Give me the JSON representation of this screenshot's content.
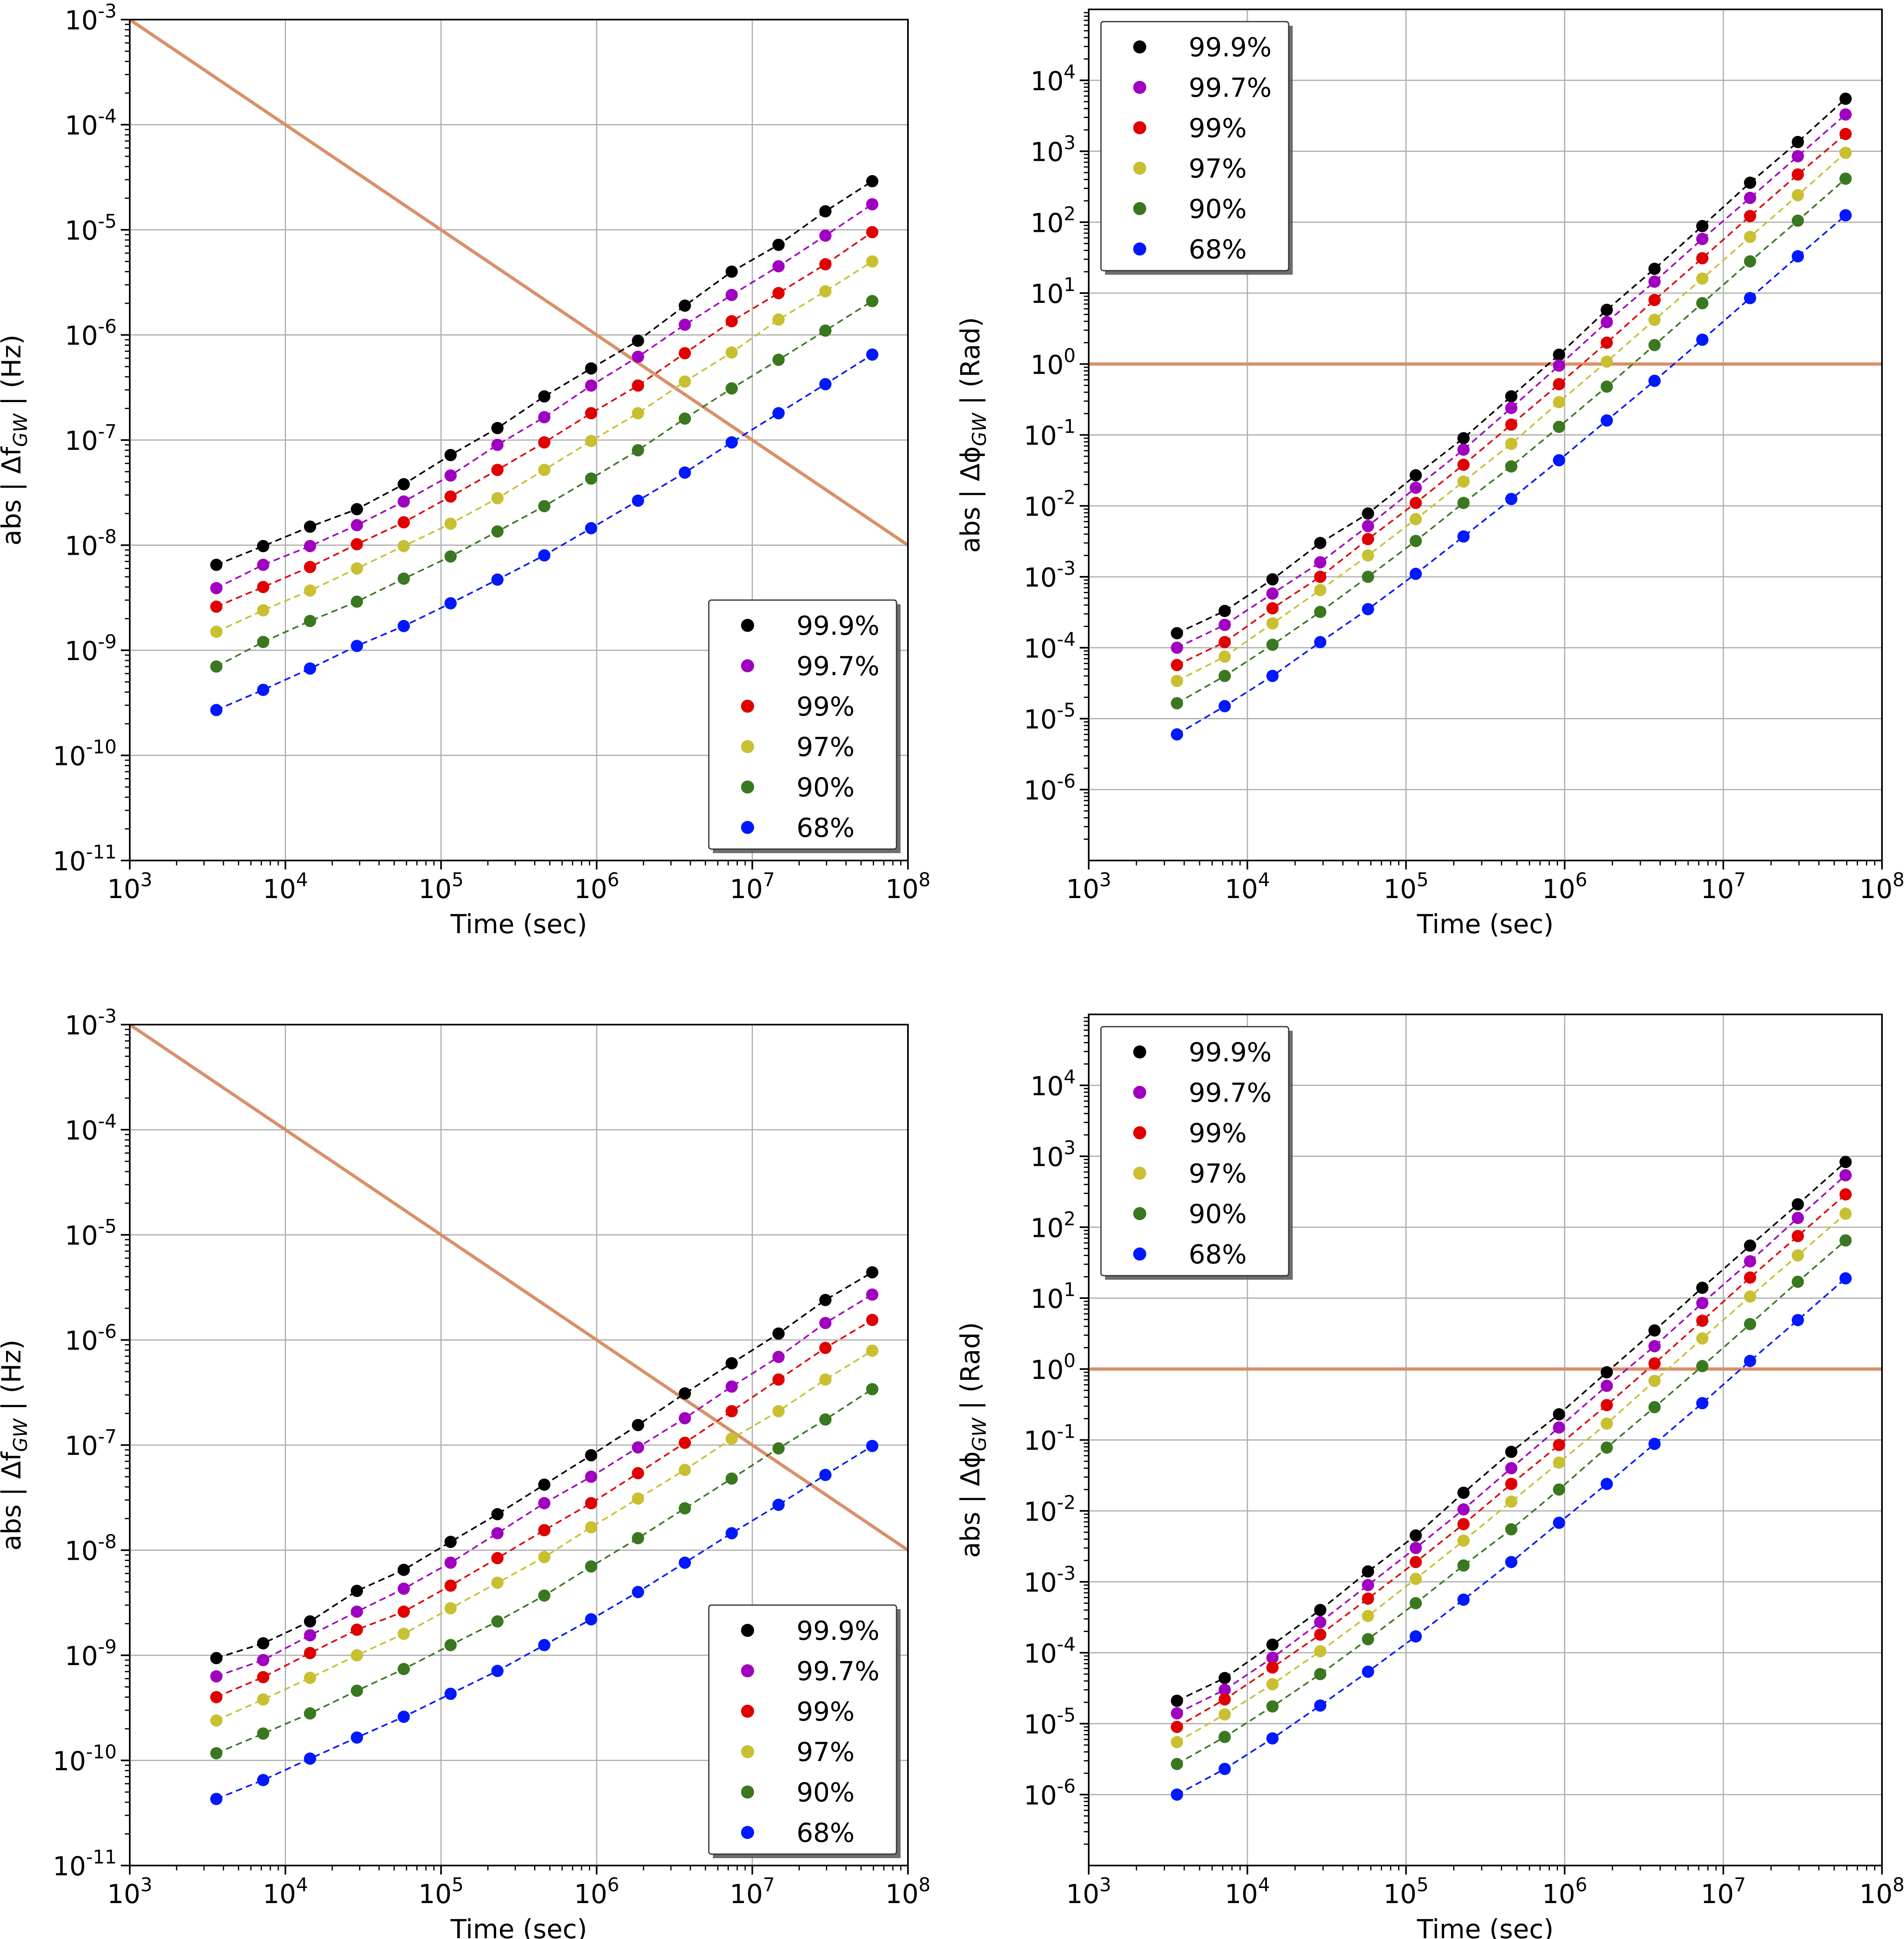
{
  "colors": {
    "series": [
      "#000000",
      "#a000c0",
      "#e00000",
      "#c8c030",
      "#3a7820",
      "#0018ff"
    ],
    "reference_line": "#d9906a",
    "grid": "#b0b0b0"
  },
  "chart_data": [
    {
      "type": "scatter",
      "panel": "top-left",
      "xlabel": "Time (sec)",
      "ylabel": "abs | Δf_GW |  (Hz)",
      "x_scale": "log",
      "y_scale": "log",
      "xlim": [
        1000,
        100000000
      ],
      "ylim": [
        1e-11,
        0.001
      ],
      "x_ticks": [
        "10^3",
        "10^4",
        "10^5",
        "10^6",
        "10^7",
        "10^8"
      ],
      "y_ticks": [
        "10^-11",
        "10^-10",
        "10^-9",
        "10^-8",
        "10^-7",
        "10^-6",
        "10^-5",
        "10^-4",
        "10^-3"
      ],
      "grid": true,
      "legend_position": "lower-right",
      "x": [
        3600,
        7200,
        14400,
        28800,
        57600,
        115200,
        230400,
        460800,
        921600,
        1843200,
        3686400,
        7372800,
        14745600,
        29491200,
        58982400
      ],
      "reference_line": {
        "x": [
          1000,
          100000000
        ],
        "y": [
          0.001,
          1e-08
        ]
      },
      "series": [
        {
          "name": "99.9%",
          "values": [
            6.5e-09,
            9.8e-09,
            1.5e-08,
            2.2e-08,
            3.8e-08,
            7.2e-08,
            1.3e-07,
            2.6e-07,
            4.8e-07,
            8.8e-07,
            1.9e-06,
            4e-06,
            7.2e-06,
            1.5e-05,
            2.9e-05
          ]
        },
        {
          "name": "99.7%",
          "values": [
            3.9e-09,
            6.5e-09,
            9.8e-09,
            1.55e-08,
            2.6e-08,
            4.6e-08,
            9e-08,
            1.65e-07,
            3.3e-07,
            6.2e-07,
            1.25e-06,
            2.4e-06,
            4.5e-06,
            8.8e-06,
            1.75e-05
          ]
        },
        {
          "name": "99%",
          "values": [
            2.6e-09,
            4e-09,
            6.2e-09,
            1.02e-08,
            1.65e-08,
            2.9e-08,
            5.2e-08,
            9.5e-08,
            1.8e-07,
            3.3e-07,
            6.7e-07,
            1.35e-06,
            2.5e-06,
            4.7e-06,
            9.5e-06
          ]
        },
        {
          "name": "97%",
          "values": [
            1.5e-09,
            2.4e-09,
            3.7e-09,
            6e-09,
            9.8e-09,
            1.6e-08,
            2.8e-08,
            5.2e-08,
            9.8e-08,
            1.8e-07,
            3.6e-07,
            6.8e-07,
            1.4e-06,
            2.6e-06,
            5e-06
          ]
        },
        {
          "name": "90%",
          "values": [
            7e-10,
            1.2e-09,
            1.9e-09,
            2.9e-09,
            4.8e-09,
            7.8e-09,
            1.35e-08,
            2.35e-08,
            4.3e-08,
            8e-08,
            1.6e-07,
            3.1e-07,
            5.8e-07,
            1.1e-06,
            2.1e-06
          ]
        },
        {
          "name": "68%",
          "values": [
            2.7e-10,
            4.2e-10,
            6.7e-10,
            1.1e-09,
            1.7e-09,
            2.8e-09,
            4.7e-09,
            8e-09,
            1.45e-08,
            2.65e-08,
            4.9e-08,
            9.5e-08,
            1.8e-07,
            3.4e-07,
            6.5e-07
          ]
        }
      ]
    },
    {
      "type": "scatter",
      "panel": "top-right",
      "xlabel": "Time (sec)",
      "ylabel": "abs | Δϕ_GW |  (Rad)",
      "x_scale": "log",
      "y_scale": "log",
      "xlim": [
        1000,
        100000000
      ],
      "ylim": [
        1e-07,
        100000
      ],
      "x_ticks": [
        "10^3",
        "10^4",
        "10^5",
        "10^6",
        "10^7",
        "10^8"
      ],
      "y_ticks": [
        "10^-6",
        "10^-5",
        "10^-4",
        "10^-3",
        "10^-2",
        "10^-1",
        "10^0",
        "10^1",
        "10^2",
        "10^3",
        "10^4"
      ],
      "grid": true,
      "legend_position": "upper-left",
      "x": [
        3600,
        7200,
        14400,
        28800,
        57600,
        115200,
        230400,
        460800,
        921600,
        1843200,
        3686400,
        7372800,
        14745600,
        29491200,
        58982400
      ],
      "reference_line": {
        "x": [
          1000,
          100000000
        ],
        "y": [
          1,
          1
        ]
      },
      "series": [
        {
          "name": "99.9%",
          "values": [
            0.00016,
            0.00033,
            0.00092,
            0.003,
            0.0078,
            0.027,
            0.09,
            0.35,
            1.35,
            5.8,
            22,
            88,
            360,
            1350,
            5500
          ]
        },
        {
          "name": "99.7%",
          "values": [
            0.0001,
            0.00021,
            0.00058,
            0.0016,
            0.0052,
            0.018,
            0.062,
            0.24,
            0.95,
            3.9,
            14.5,
            58,
            220,
            850,
            3300
          ]
        },
        {
          "name": "99%",
          "values": [
            5.7e-05,
            0.00012,
            0.00036,
            0.001,
            0.0034,
            0.011,
            0.038,
            0.14,
            0.52,
            2.0,
            8.0,
            31,
            122,
            470,
            1750
          ]
        },
        {
          "name": "97%",
          "values": [
            3.4e-05,
            7.5e-05,
            0.00022,
            0.00065,
            0.002,
            0.0065,
            0.022,
            0.075,
            0.29,
            1.08,
            4.2,
            16,
            62,
            240,
            950
          ]
        },
        {
          "name": "90%",
          "values": [
            1.65e-05,
            4e-05,
            0.00011,
            0.00032,
            0.001,
            0.0032,
            0.011,
            0.036,
            0.13,
            0.48,
            1.85,
            7.2,
            28,
            105,
            410
          ]
        },
        {
          "name": "68%",
          "values": [
            6e-06,
            1.5e-05,
            4e-05,
            0.00012,
            0.00035,
            0.0011,
            0.0037,
            0.0125,
            0.044,
            0.16,
            0.58,
            2.2,
            8.5,
            33,
            125
          ]
        }
      ]
    },
    {
      "type": "scatter",
      "panel": "bottom-left",
      "xlabel": "Time (sec)",
      "ylabel": "abs | Δf_GW |  (Hz)",
      "x_scale": "log",
      "y_scale": "log",
      "xlim": [
        1000,
        100000000
      ],
      "ylim": [
        1e-11,
        0.001
      ],
      "x_ticks": [
        "10^3",
        "10^4",
        "10^5",
        "10^6",
        "10^7",
        "10^8"
      ],
      "y_ticks": [
        "10^-11",
        "10^-10",
        "10^-9",
        "10^-8",
        "10^-7",
        "10^-6",
        "10^-5",
        "10^-4",
        "10^-3"
      ],
      "grid": true,
      "legend_position": "lower-right",
      "x": [
        3600,
        7200,
        14400,
        28800,
        57600,
        115200,
        230400,
        460800,
        921600,
        1843200,
        3686400,
        7372800,
        14745600,
        29491200,
        58982400
      ],
      "reference_line": {
        "x": [
          1000,
          100000000
        ],
        "y": [
          0.001,
          1e-08
        ]
      },
      "series": [
        {
          "name": "99.9%",
          "values": [
            9.4e-10,
            1.3e-09,
            2.1e-09,
            4.1e-09,
            6.5e-09,
            1.2e-08,
            2.2e-08,
            4.2e-08,
            8e-08,
            1.55e-07,
            3.1e-07,
            6e-07,
            1.15e-06,
            2.4e-06,
            4.4e-06
          ]
        },
        {
          "name": "99.7%",
          "values": [
            6.3e-10,
            9e-10,
            1.55e-09,
            2.6e-09,
            4.3e-09,
            7.6e-09,
            1.45e-08,
            2.8e-08,
            5e-08,
            9.5e-08,
            1.8e-07,
            3.6e-07,
            6.9e-07,
            1.45e-06,
            2.7e-06
          ]
        },
        {
          "name": "99%",
          "values": [
            4e-10,
            6.2e-10,
            1.05e-09,
            1.75e-09,
            2.6e-09,
            4.6e-09,
            8.4e-09,
            1.55e-08,
            2.8e-08,
            5.4e-08,
            1.05e-07,
            2.1e-07,
            4.2e-07,
            8.4e-07,
            1.55e-06
          ]
        },
        {
          "name": "97%",
          "values": [
            2.4e-10,
            3.8e-10,
            6.1e-10,
            1e-09,
            1.6e-09,
            2.8e-09,
            4.9e-09,
            8.6e-09,
            1.65e-08,
            3.1e-08,
            5.8e-08,
            1.15e-07,
            2.1e-07,
            4.2e-07,
            7.9e-07
          ]
        },
        {
          "name": "90%",
          "values": [
            1.17e-10,
            1.8e-10,
            2.8e-10,
            4.6e-10,
            7.4e-10,
            1.25e-09,
            2.1e-09,
            3.7e-09,
            7e-09,
            1.3e-08,
            2.5e-08,
            4.8e-08,
            9.3e-08,
            1.75e-07,
            3.4e-07
          ]
        },
        {
          "name": "68%",
          "values": [
            4.3e-11,
            6.5e-11,
            1.04e-10,
            1.65e-10,
            2.6e-10,
            4.3e-10,
            7.1e-10,
            1.25e-09,
            2.2e-09,
            4e-09,
            7.6e-09,
            1.45e-08,
            2.7e-08,
            5.2e-08,
            9.8e-08
          ]
        }
      ]
    },
    {
      "type": "scatter",
      "panel": "bottom-right",
      "xlabel": "Time (sec)",
      "ylabel": "abs | Δϕ_GW |  (Rad)",
      "x_scale": "log",
      "y_scale": "log",
      "xlim": [
        1000,
        100000000
      ],
      "ylim": [
        1e-07,
        100000
      ],
      "x_ticks": [
        "10^3",
        "10^4",
        "10^5",
        "10^6",
        "10^7",
        "10^8"
      ],
      "y_ticks": [
        "10^-6",
        "10^-5",
        "10^-4",
        "10^-3",
        "10^-2",
        "10^-1",
        "10^0",
        "10^1",
        "10^2",
        "10^3",
        "10^4"
      ],
      "grid": true,
      "legend_position": "upper-left",
      "x": [
        3600,
        7200,
        14400,
        28800,
        57600,
        115200,
        230400,
        460800,
        921600,
        1843200,
        3686400,
        7372800,
        14745600,
        29491200,
        58982400
      ],
      "reference_line": {
        "x": [
          1000,
          100000000
        ],
        "y": [
          1,
          1
        ]
      },
      "series": [
        {
          "name": "99.9%",
          "values": [
            2.1e-05,
            4.4e-05,
            0.00013,
            0.0004,
            0.0014,
            0.0045,
            0.018,
            0.068,
            0.23,
            0.9,
            3.5,
            14,
            55,
            210,
            830
          ]
        },
        {
          "name": "99.7%",
          "values": [
            1.4e-05,
            3e-05,
            8.5e-05,
            0.00027,
            0.0009,
            0.003,
            0.0105,
            0.04,
            0.15,
            0.58,
            2.1,
            8.5,
            33,
            135,
            540
          ]
        },
        {
          "name": "99%",
          "values": [
            9e-06,
            2.2e-05,
            6.2e-05,
            0.00018,
            0.00058,
            0.0019,
            0.0065,
            0.024,
            0.085,
            0.31,
            1.2,
            4.8,
            19.5,
            75,
            290
          ]
        },
        {
          "name": "97%",
          "values": [
            5.5e-06,
            1.35e-05,
            3.6e-05,
            0.000105,
            0.00033,
            0.0011,
            0.0038,
            0.0135,
            0.048,
            0.17,
            0.68,
            2.7,
            10.5,
            40,
            155
          ]
        },
        {
          "name": "90%",
          "values": [
            2.7e-06,
            6.5e-06,
            1.75e-05,
            5e-05,
            0.000155,
            0.0005,
            0.0017,
            0.0055,
            0.02,
            0.078,
            0.29,
            1.1,
            4.3,
            17,
            65
          ]
        },
        {
          "name": "68%",
          "values": [
            1e-06,
            2.3e-06,
            6.2e-06,
            1.8e-05,
            5.4e-05,
            0.00017,
            0.00056,
            0.0019,
            0.0068,
            0.024,
            0.088,
            0.33,
            1.3,
            4.9,
            19
          ]
        }
      ]
    }
  ]
}
